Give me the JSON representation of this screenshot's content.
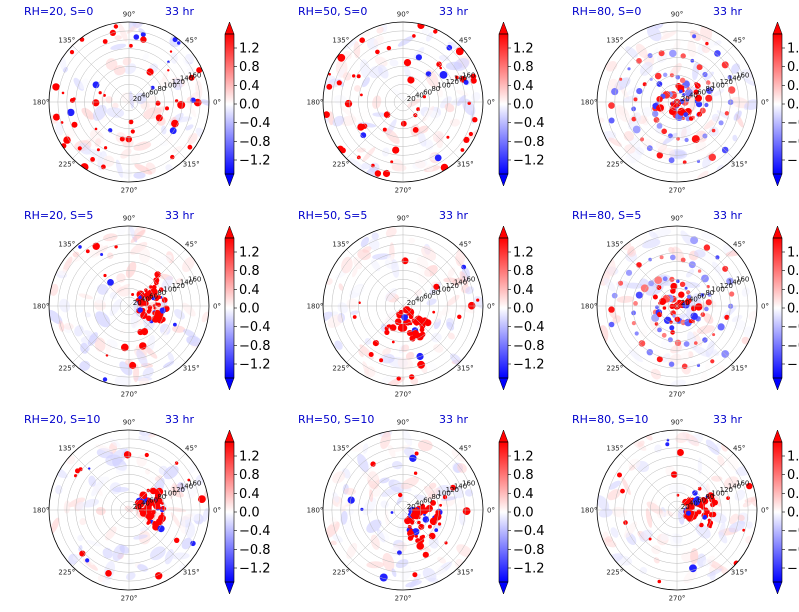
{
  "chart_data": {
    "type": "heatmap",
    "projection": "polar",
    "field_description_colorbar": "diverging bwr colormap with extend arrows on both ends",
    "colors": {
      "positive": "#ff0000",
      "negative": "#0000ff",
      "zero": "#ffffff",
      "title": "#0000cc"
    },
    "colorbar": {
      "min": -1.5,
      "max": 1.5,
      "ticks": [
        1.2,
        0.8,
        0.4,
        0.0,
        -0.4,
        -0.8,
        -1.2
      ],
      "tick_labels": [
        "1.2",
        "0.8",
        "0.4",
        "0.0",
        "−0.4",
        "−0.8",
        "−1.2"
      ]
    },
    "angle_ticks": [
      0,
      45,
      90,
      135,
      180,
      225,
      270,
      315
    ],
    "angle_tick_labels": [
      "0°",
      "45°",
      "90°",
      "135°",
      "180°",
      "225°",
      "270°",
      "315°"
    ],
    "radial_ticks": [
      20,
      40,
      60,
      80,
      100,
      120,
      140,
      160
    ],
    "radial_tick_labels": [
      "20",
      "40",
      "60",
      "80",
      "100",
      "120",
      "140",
      "160"
    ],
    "radial_label_angle_deg": 22.5,
    "r_max": 180,
    "panels": [
      {
        "rh": 20,
        "s": 0,
        "title_left": "RH=20, S=0",
        "title_right": "33 hr",
        "structure": "scattered"
      },
      {
        "rh": 50,
        "s": 0,
        "title_left": "RH=50, S=0",
        "title_right": "33 hr",
        "structure": "scattered"
      },
      {
        "rh": 80,
        "s": 0,
        "title_left": "RH=80, S=0",
        "title_right": "33 hr",
        "structure": "spiral"
      },
      {
        "rh": 20,
        "s": 5,
        "title_left": "RH=20, S=5",
        "title_right": "33 hr",
        "structure": "east-cluster"
      },
      {
        "rh": 50,
        "s": 5,
        "title_left": "RH=50, S=5",
        "title_right": "33 hr",
        "structure": "south-cluster"
      },
      {
        "rh": 80,
        "s": 5,
        "title_left": "RH=80, S=5",
        "title_right": "33 hr",
        "structure": "spiral"
      },
      {
        "rh": 20,
        "s": 10,
        "title_left": "RH=20, S=10",
        "title_right": "33 hr",
        "structure": "east-cluster"
      },
      {
        "rh": 50,
        "s": 10,
        "title_left": "RH=50, S=10",
        "title_right": "33 hr",
        "structure": "southeast-cluster"
      },
      {
        "rh": 80,
        "s": 10,
        "title_left": "RH=80, S=10",
        "title_right": "33 hr",
        "structure": "east-cluster"
      }
    ]
  }
}
